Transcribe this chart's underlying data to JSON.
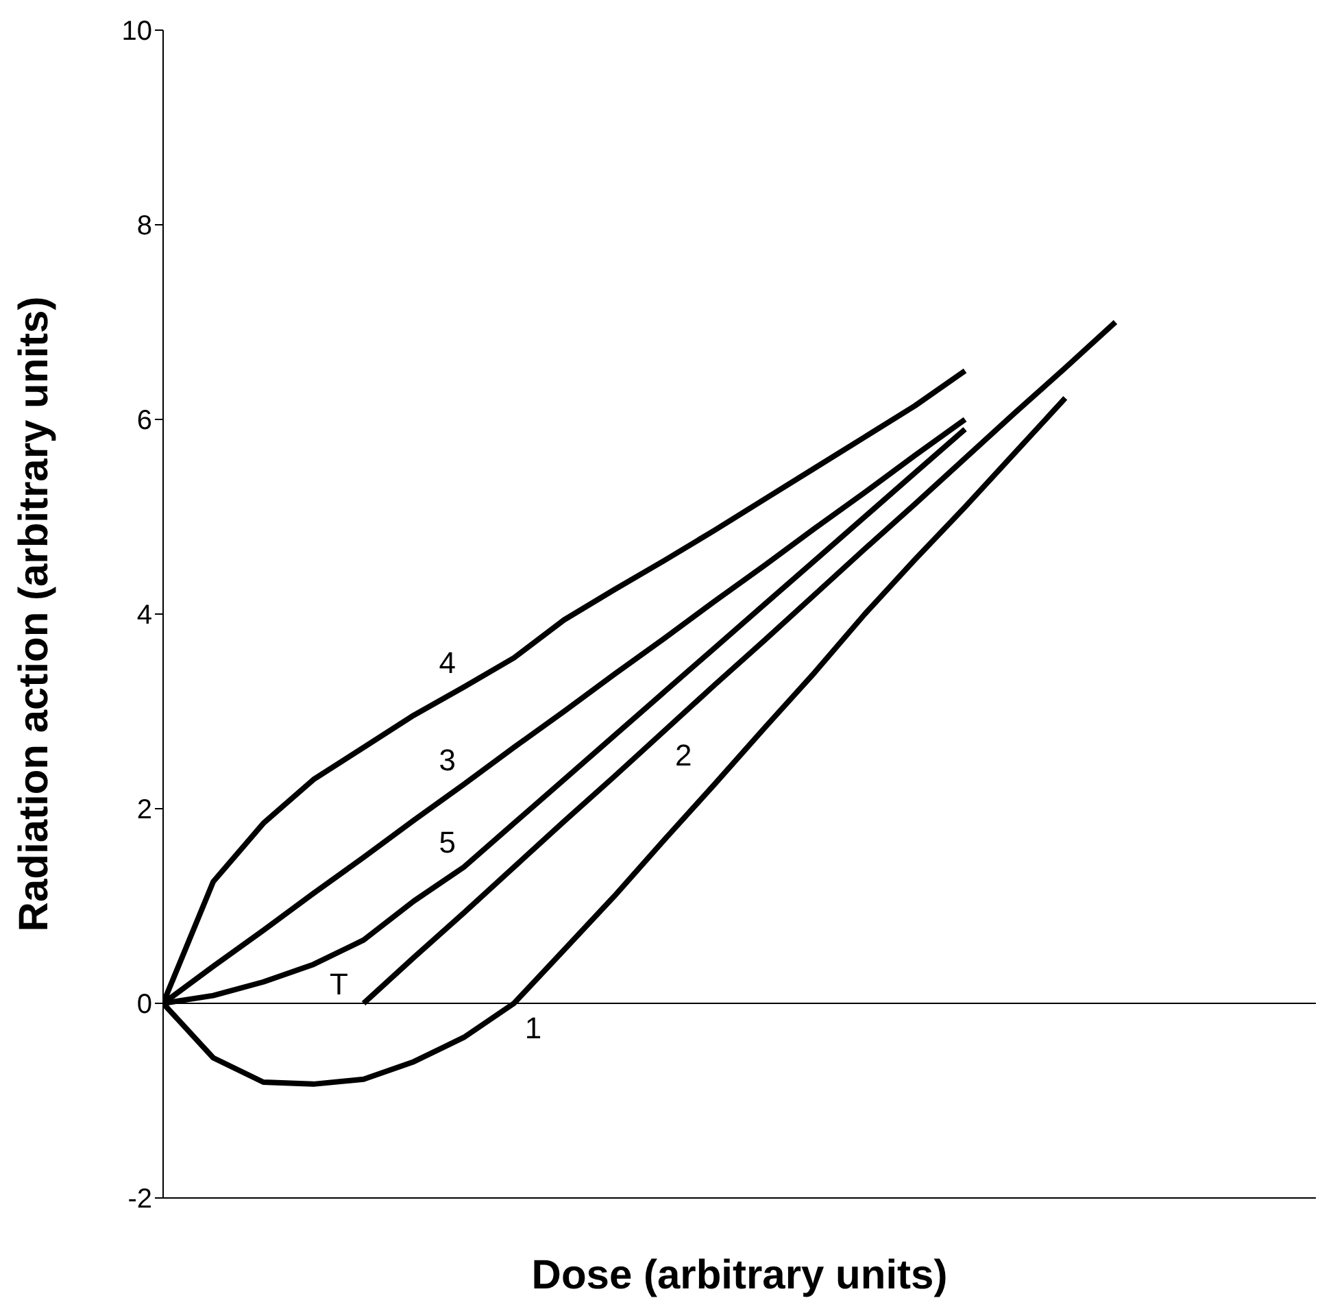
{
  "chart_data": {
    "type": "line",
    "xlabel": "Dose (arbitrary units)",
    "ylabel": "Radiation action (arbitrary units)",
    "categories": [
      null,
      null,
      null,
      null,
      null,
      null,
      null,
      null,
      null,
      null,
      null,
      null,
      null,
      null,
      null,
      null,
      null,
      null,
      null,
      null,
      null,
      null,
      null,
      null
    ],
    "ylim": [
      -2,
      10
    ],
    "yticks": [
      -2,
      0,
      2,
      4,
      6,
      8,
      10
    ],
    "grid": false,
    "legend": false,
    "marker": "none",
    "line_style": "solid",
    "series": [
      {
        "name": "4",
        "color": "#000000",
        "values": [
          0,
          1.25,
          1.85,
          2.3,
          2.63,
          2.96,
          3.25,
          3.55,
          3.94,
          4.25,
          4.55,
          4.86,
          5.18,
          5.5,
          5.82,
          6.14,
          6.5,
          null,
          null,
          null,
          null,
          null,
          null,
          null
        ]
      },
      {
        "name": "3",
        "color": "#000000",
        "values": [
          0,
          0.38,
          0.75,
          1.13,
          1.5,
          1.88,
          2.25,
          2.63,
          3.0,
          3.38,
          3.75,
          4.13,
          4.5,
          4.88,
          5.25,
          5.63,
          6.0,
          null,
          null,
          null,
          null,
          null,
          null,
          null
        ]
      },
      {
        "name": "5",
        "color": "#000000",
        "values": [
          0,
          0.08,
          0.22,
          0.4,
          0.65,
          1.05,
          1.4,
          1.85,
          2.3,
          2.75,
          3.2,
          3.65,
          4.1,
          4.55,
          5.0,
          5.45,
          5.9,
          null,
          null,
          null,
          null,
          null,
          null,
          null
        ]
      },
      {
        "name": "2",
        "color": "#000000",
        "values": [
          null,
          null,
          null,
          null,
          0,
          0.47,
          0.93,
          1.4,
          1.87,
          2.33,
          2.8,
          3.27,
          3.73,
          4.2,
          4.67,
          5.13,
          5.6,
          6.07,
          6.53,
          7.0,
          null,
          null,
          null,
          null
        ]
      },
      {
        "name": "1",
        "color": "#000000",
        "values": [
          0,
          -0.56,
          -0.81,
          -0.83,
          -0.78,
          -0.6,
          -0.35,
          0,
          0.55,
          1.1,
          1.68,
          2.25,
          2.83,
          3.4,
          4.0,
          4.56,
          5.1,
          5.66,
          6.22,
          null,
          null,
          null,
          null,
          null
        ]
      }
    ],
    "ref_lines": [
      {
        "axis": "y",
        "value": 0,
        "color": "#000000"
      }
    ],
    "annotations": [
      "T"
    ]
  }
}
